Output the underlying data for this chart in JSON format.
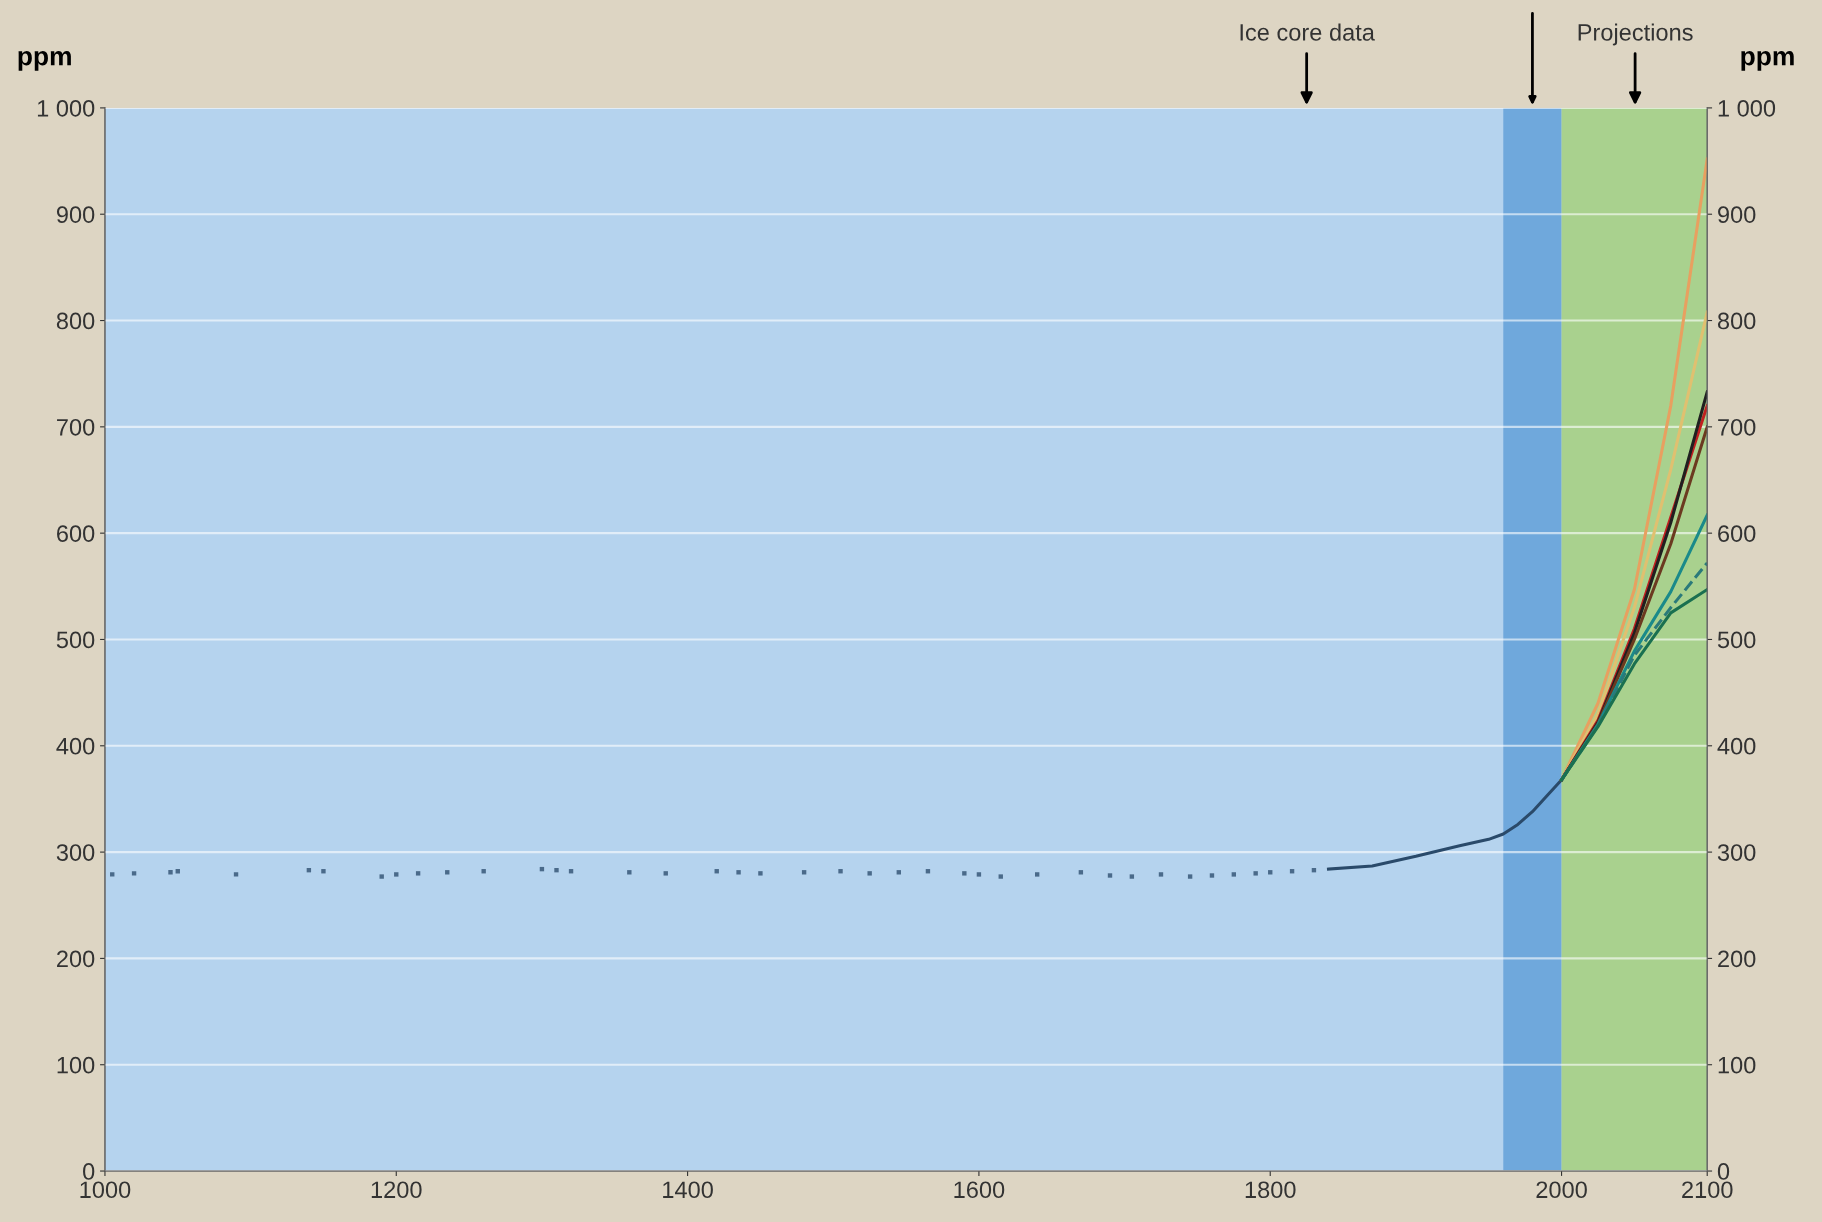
{
  "chart_data": {
    "type": "line",
    "ylabel": "ppm",
    "y2label": "ppm",
    "xlim": [
      1000,
      2100
    ],
    "xticks": [
      1000,
      1200,
      1400,
      1600,
      1800,
      2000,
      2100
    ],
    "ylim": [
      0,
      1000
    ],
    "yticks": [
      0,
      100,
      200,
      300,
      400,
      500,
      600,
      700,
      800,
      {
        "value": 1000,
        "label": "1 000"
      },
      900
    ],
    "y2lim": [
      0,
      1000
    ],
    "y2ticks": [
      0,
      100,
      200,
      300,
      400,
      500,
      600,
      700,
      800,
      900,
      {
        "value": 1000,
        "label": "1 000"
      }
    ],
    "grid": "y",
    "bands": [
      {
        "axis": "x",
        "from": 1960,
        "to": 2000,
        "color": "#6fa8dc"
      },
      {
        "axis": "x",
        "from": 2000,
        "to": 2100,
        "color": "#a9d18e"
      }
    ],
    "annotations": [
      "Ice core data",
      "Projections"
    ],
    "series": [
      {
        "type": "scatter",
        "color": "#4a6a8a",
        "x": [
          1005,
          1020,
          1045,
          1050,
          1090,
          1140,
          1150,
          1190,
          1200,
          1215,
          1235,
          1260,
          1300,
          1310,
          1320,
          1360,
          1385,
          1420,
          1435,
          1450,
          1480,
          1505,
          1525,
          1545,
          1565,
          1590,
          1600,
          1615,
          1640,
          1670,
          1690,
          1705,
          1725,
          1745,
          1760,
          1775,
          1790,
          1800,
          1815,
          1830
        ],
        "values": [
          279,
          280,
          281,
          282,
          279,
          283,
          282,
          277,
          279,
          280,
          281,
          282,
          284,
          283,
          282,
          281,
          280,
          282,
          281,
          280,
          281,
          282,
          280,
          281,
          282,
          280,
          279,
          277,
          279,
          281,
          278,
          277,
          279,
          277,
          278,
          279,
          280,
          281,
          282,
          283
        ]
      },
      {
        "color": "#2a4a6a",
        "x": [
          1840,
          1870,
          1900,
          1930,
          1950,
          1960,
          1970,
          1980,
          1990,
          2000
        ],
        "values": [
          284,
          287,
          296,
          306,
          312,
          317,
          326,
          338,
          353,
          368
        ]
      },
      {
        "color": "#e8a060",
        "x": [
          2000,
          2025,
          2050,
          2075,
          2100
        ],
        "values": [
          368,
          440,
          547,
          720,
          952
        ]
      },
      {
        "color": "#e0c070",
        "x": [
          2000,
          2025,
          2050,
          2075,
          2100
        ],
        "values": [
          368,
          430,
          530,
          660,
          808
        ]
      },
      {
        "color": "#c02020",
        "x": [
          2000,
          2025,
          2050,
          2075,
          2100
        ],
        "values": [
          368,
          424,
          510,
          615,
          720
        ]
      },
      {
        "color": "#202020",
        "x": [
          2000,
          2025,
          2050,
          2075,
          2100
        ],
        "values": [
          368,
          422,
          506,
          610,
          733
        ]
      },
      {
        "color": "#6b3a20",
        "x": [
          2000,
          2025,
          2050,
          2075,
          2100
        ],
        "values": [
          368,
          421,
          500,
          590,
          700
        ]
      },
      {
        "color": "#1a8a8a",
        "x": [
          2000,
          2025,
          2050,
          2075,
          2100
        ],
        "values": [
          368,
          420,
          489,
          545,
          617
        ]
      },
      {
        "color": "#2a7a7a",
        "line_style": "dashed",
        "x": [
          2000,
          2025,
          2050,
          2075,
          2100
        ],
        "values": [
          368,
          419,
          485,
          530,
          572
        ]
      },
      {
        "color": "#1a7050",
        "x": [
          2000,
          2025,
          2050,
          2075,
          2100
        ],
        "values": [
          368,
          418,
          477,
          525,
          547
        ]
      }
    ]
  }
}
